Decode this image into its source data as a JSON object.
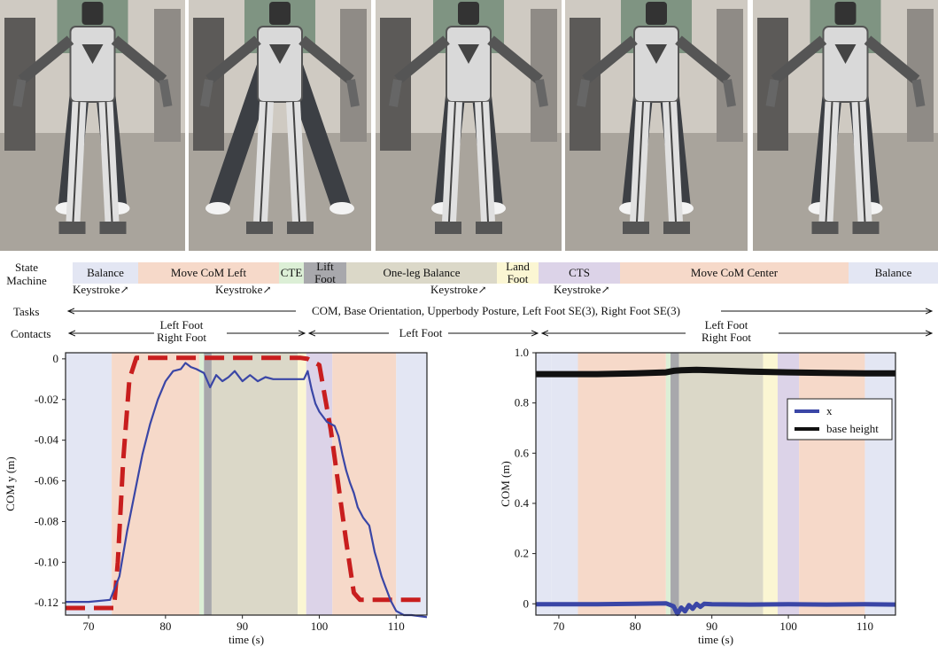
{
  "photos": [
    {
      "name": "photo-1"
    },
    {
      "name": "photo-2"
    },
    {
      "name": "photo-3"
    },
    {
      "name": "photo-4"
    },
    {
      "name": "photo-5"
    }
  ],
  "state_machine": {
    "label": "State\nMachine",
    "label_line1": "State",
    "label_line2": "Machine",
    "segments": [
      {
        "label": "Balance",
        "color": "#e3e6f3"
      },
      {
        "label": "Move CoM Left",
        "color": "#f6d9c9"
      },
      {
        "label": "CTE",
        "color": "#dcefd6"
      },
      {
        "label": "Lift\nFoot",
        "line1": "Lift",
        "line2": "Foot",
        "color": "#a8a8ac"
      },
      {
        "label": "One-leg Balance",
        "color": "#dbd8c8"
      },
      {
        "label": "Land\nFoot",
        "line1": "Land",
        "line2": "Foot",
        "color": "#fbf6d3"
      },
      {
        "label": "CTS",
        "color": "#dcd3e8"
      },
      {
        "label": "Move CoM Center",
        "color": "#f6d9c9"
      },
      {
        "label": "Balance",
        "color": "#e3e6f3"
      }
    ],
    "keystrokes": [
      "Keystroke",
      "Keystroke",
      "Keystroke",
      "Keystroke"
    ]
  },
  "tasks": {
    "label": "Tasks",
    "text": "COM, Base Orientation, Upperbody Posture, Left Foot SE(3), Right Foot SE(3)"
  },
  "contacts": {
    "label": "Contacts",
    "phases": [
      {
        "line1": "Left Foot",
        "line2": "Right Foot"
      },
      {
        "line1": "Left Foot",
        "line2": ""
      },
      {
        "line1": "Left Foot",
        "line2": "Right Foot"
      }
    ]
  },
  "chart_data": [
    {
      "type": "line",
      "xlabel": "time (s)",
      "ylabel": "COM y (m)",
      "xlim": [
        67,
        114
      ],
      "ylim": [
        -0.126,
        0.003
      ],
      "xticks": [
        70,
        80,
        90,
        100,
        110
      ],
      "xtick_labels": [
        "70",
        "80",
        "90",
        "100",
        "110"
      ],
      "yticks": [
        0,
        -0.02,
        -0.04,
        -0.06,
        -0.08,
        -0.1,
        -0.12
      ],
      "ytick_labels": [
        "0",
        "-0.02",
        "-0.04",
        "-0.06",
        "-0.08",
        "-0.10",
        "-0.12"
      ],
      "phases": [
        {
          "start": 67,
          "end": 73,
          "color": "#e3e6f3"
        },
        {
          "start": 73,
          "end": 84.4,
          "color": "#f6d9c9"
        },
        {
          "start": 84.4,
          "end": 85,
          "color": "#dcefd6"
        },
        {
          "start": 85,
          "end": 86,
          "color": "#a8a8ac"
        },
        {
          "start": 86,
          "end": 97.2,
          "color": "#dbd8c8"
        },
        {
          "start": 97.2,
          "end": 98.3,
          "color": "#fbf6d3"
        },
        {
          "start": 98.3,
          "end": 101.7,
          "color": "#dcd3e8"
        },
        {
          "start": 101.7,
          "end": 110,
          "color": "#f6d9c9"
        },
        {
          "start": 110,
          "end": 114,
          "color": "#e3e6f3"
        }
      ],
      "series": [
        {
          "color": "#c81e1e",
          "dashed": true,
          "x": [
            67,
            73.3,
            73.8,
            74.5,
            75.3,
            76.2,
            97.5,
            98.5,
            100,
            101.5,
            103.5,
            104.5,
            105.3,
            114
          ],
          "y": [
            -0.1225,
            -0.1225,
            -0.1,
            -0.05,
            -0.01,
            0.0005,
            0.0005,
            0.0,
            -0.003,
            -0.035,
            -0.09,
            -0.115,
            -0.1185,
            -0.1185
          ]
        },
        {
          "color": "#3a46a6",
          "dashed": false,
          "x": [
            67,
            70,
            72.8,
            74,
            75,
            76,
            77,
            78,
            79,
            80,
            81,
            82,
            82.6,
            83.3,
            84,
            85,
            85.8,
            86.6,
            87.4,
            88.2,
            89,
            90,
            91,
            92,
            93,
            94,
            95,
            96,
            97,
            98,
            98.5,
            99,
            99.5,
            100,
            101,
            102,
            102.5,
            103,
            103.5,
            104,
            104.5,
            105,
            105.7,
            106.5,
            107.2,
            107.6,
            108.1,
            108.6,
            109.3,
            110,
            111,
            112,
            114
          ],
          "y": [
            -0.1195,
            -0.1195,
            -0.1185,
            -0.107,
            -0.085,
            -0.066,
            -0.047,
            -0.032,
            -0.02,
            -0.011,
            -0.006,
            -0.005,
            -0.002,
            -0.004,
            -0.005,
            -0.007,
            -0.014,
            -0.008,
            -0.011,
            -0.009,
            -0.006,
            -0.011,
            -0.008,
            -0.011,
            -0.009,
            -0.01,
            -0.01,
            -0.01,
            -0.01,
            -0.01,
            -0.006,
            -0.015,
            -0.022,
            -0.026,
            -0.031,
            -0.033,
            -0.038,
            -0.047,
            -0.055,
            -0.061,
            -0.066,
            -0.073,
            -0.078,
            -0.082,
            -0.095,
            -0.1,
            -0.107,
            -0.112,
            -0.119,
            -0.124,
            -0.126,
            -0.126,
            -0.127
          ]
        }
      ]
    },
    {
      "type": "line",
      "xlabel": "time (s)",
      "ylabel": "COM (m)",
      "xlim": [
        67,
        114
      ],
      "ylim": [
        -0.045,
        1.0
      ],
      "xticks": [
        70,
        80,
        90,
        100,
        110
      ],
      "xtick_labels": [
        "70",
        "80",
        "90",
        "100",
        "110"
      ],
      "yticks": [
        0,
        0.2,
        0.4,
        0.6,
        0.8,
        1.0
      ],
      "ytick_labels": [
        "0",
        "0.2",
        "0.4",
        "0.6",
        "0.8",
        "1.0"
      ],
      "legend": {
        "position": "top-right",
        "entries": [
          {
            "label": "x",
            "color": "#3a46a6"
          },
          {
            "label": "base height",
            "color": "#111111"
          }
        ]
      },
      "phases": [
        {
          "start": 67,
          "end": 69,
          "color": "#e3e6f3"
        },
        {
          "start": 69,
          "end": 72.5,
          "color": "#e3e6f3"
        },
        {
          "start": 72.5,
          "end": 84,
          "color": "#f6d9c9"
        },
        {
          "start": 84,
          "end": 84.6,
          "color": "#dcefd6"
        },
        {
          "start": 84.6,
          "end": 85.7,
          "color": "#a8a8ac"
        },
        {
          "start": 85.7,
          "end": 96.7,
          "color": "#dbd8c8"
        },
        {
          "start": 96.7,
          "end": 98.6,
          "color": "#fbf6d3"
        },
        {
          "start": 98.6,
          "end": 101.4,
          "color": "#dcd3e8"
        },
        {
          "start": 101.4,
          "end": 110,
          "color": "#f6d9c9"
        },
        {
          "start": 110,
          "end": 114,
          "color": "#e3e6f3"
        }
      ],
      "series": [
        {
          "name": "x",
          "color": "#3a46a6",
          "dashed": false,
          "x": [
            67,
            75,
            80,
            84,
            85,
            85.5,
            86,
            86.5,
            87,
            87.5,
            88,
            88.5,
            89,
            90,
            95,
            100,
            105,
            110,
            114
          ],
          "y": [
            -0.002,
            -0.002,
            0.0,
            0.002,
            -0.01,
            -0.04,
            -0.015,
            -0.03,
            -0.005,
            -0.02,
            0.0,
            -0.012,
            0.0,
            -0.002,
            -0.003,
            -0.002,
            -0.003,
            -0.002,
            -0.003
          ]
        },
        {
          "name": "base height",
          "color": "#111111",
          "dashed": false,
          "x": [
            67,
            75,
            80,
            84,
            85,
            86,
            88,
            90,
            95,
            100,
            105,
            110,
            114
          ],
          "y": [
            0.915,
            0.915,
            0.918,
            0.922,
            0.928,
            0.93,
            0.932,
            0.93,
            0.925,
            0.922,
            0.92,
            0.918,
            0.918
          ]
        }
      ]
    }
  ]
}
